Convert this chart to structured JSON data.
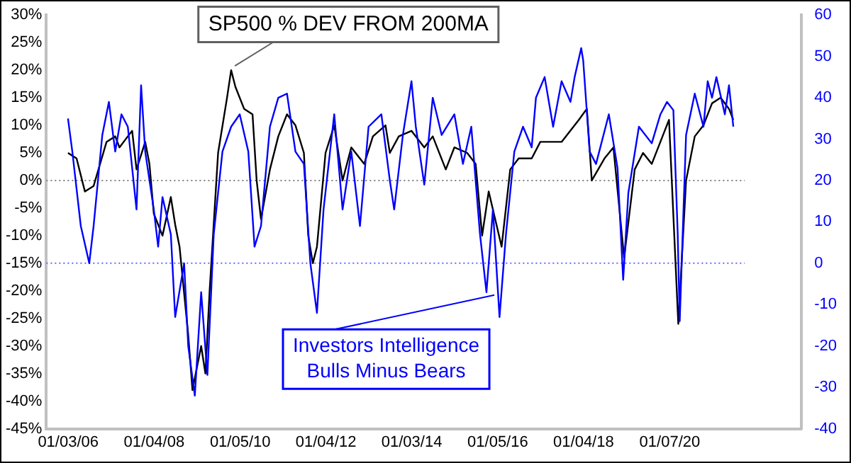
{
  "chart_data": {
    "type": "line",
    "annotations": [
      {
        "text": "SP500 % DEV FROM 200MA",
        "x": "2009-10-15",
        "y": 20
      },
      {
        "text": "Investors Intelligence\nBulls Minus Bears",
        "x": "2015-11-01",
        "y": -20
      }
    ],
    "xlim": [
      "2005-07-01",
      "2023-02-01"
    ],
    "xticks": [
      {
        "value": "2006-01-03",
        "label": "01/03/06"
      },
      {
        "value": "2008-01-04",
        "label": "01/04/08"
      },
      {
        "value": "2010-01-05",
        "label": "01/05/10"
      },
      {
        "value": "2012-01-04",
        "label": "01/04/12"
      },
      {
        "value": "2014-01-03",
        "label": "01/03/14"
      },
      {
        "value": "2016-01-05",
        "label": "01/05/16"
      },
      {
        "value": "2018-01-04",
        "label": "01/04/18"
      },
      {
        "value": "2020-01-07",
        "label": "01/07/20"
      }
    ],
    "ylim": [
      -45,
      30
    ],
    "yticks": [
      {
        "value": -45,
        "label": "-45%"
      },
      {
        "value": -40,
        "label": "-40%"
      },
      {
        "value": -35,
        "label": "-35%"
      },
      {
        "value": -30,
        "label": "-30%"
      },
      {
        "value": -25,
        "label": "-25%"
      },
      {
        "value": -20,
        "label": "-20%"
      },
      {
        "value": -15,
        "label": "-15%"
      },
      {
        "value": -10,
        "label": "-10%"
      },
      {
        "value": -5,
        "label": "-5%"
      },
      {
        "value": 0,
        "label": "0%"
      },
      {
        "value": 5,
        "label": "5%"
      },
      {
        "value": 10,
        "label": "10%"
      },
      {
        "value": 15,
        "label": "15%"
      },
      {
        "value": 20,
        "label": "20%"
      },
      {
        "value": 25,
        "label": "25%"
      },
      {
        "value": 30,
        "label": "30%"
      }
    ],
    "y2lim": [
      -40,
      60
    ],
    "y2ticks": [
      -40,
      -30,
      -20,
      -10,
      0,
      10,
      20,
      30,
      40,
      50,
      60
    ],
    "ref_lines": [
      {
        "axis": "y",
        "value": 0,
        "color": "#808080",
        "line_style": "dotted"
      },
      {
        "axis": "y2",
        "value": 0,
        "color": "#6666ff",
        "line_style": "dotted"
      }
    ],
    "grid": false,
    "legend": false,
    "marker": "none",
    "line_style": "solid",
    "series": [
      {
        "color": "#0000ff",
        "axis": "y2",
        "x": [
          "2006-01-01",
          "2006-02-07",
          "2006-04-20",
          "2006-07-01",
          "2006-08-07",
          "2006-10-20",
          "2006-12-15",
          "2007-02-07",
          "2007-04-01",
          "2007-05-25",
          "2007-07-01",
          "2007-08-07",
          "2007-09-15",
          "2007-10-20",
          "2008-01-01",
          "2008-02-07",
          "2008-03-15",
          "2008-05-25",
          "2008-07-01",
          "2008-09-15",
          "2008-10-20",
          "2008-12-15",
          "2009-02-07",
          "2009-04-01",
          "2009-05-25",
          "2009-08-07",
          "2009-10-20",
          "2010-01-01",
          "2010-03-15",
          "2010-05-07",
          "2010-07-01",
          "2010-09-15",
          "2010-11-25",
          "2011-02-07",
          "2011-04-20",
          "2011-07-01",
          "2011-08-25",
          "2011-10-20",
          "2011-12-15",
          "2012-03-15",
          "2012-05-25",
          "2012-08-07",
          "2012-10-20",
          "2013-01-01",
          "2013-04-20",
          "2013-07-01",
          "2013-08-07",
          "2013-10-20",
          "2014-01-01",
          "2014-02-07",
          "2014-04-20",
          "2014-07-01",
          "2014-09-15",
          "2015-01-01",
          "2015-03-15",
          "2015-05-25",
          "2015-08-07",
          "2015-10-01",
          "2015-11-25",
          "2016-01-20",
          "2016-03-15",
          "2016-05-25",
          "2016-08-07",
          "2016-10-20",
          "2016-11-25",
          "2017-02-07",
          "2017-04-20",
          "2017-07-01",
          "2017-09-15",
          "2017-10-20",
          "2017-12-15",
          "2018-01-01",
          "2018-02-25",
          "2018-04-20",
          "2018-08-07",
          "2018-10-20",
          "2018-12-07",
          "2019-01-20",
          "2019-04-20",
          "2019-08-07",
          "2019-10-20",
          "2019-12-15",
          "2020-02-07",
          "2020-03-15",
          "2020-04-01",
          "2020-05-25",
          "2020-08-07",
          "2020-10-20",
          "2020-11-25",
          "2021-01-01",
          "2021-02-07",
          "2021-04-20",
          "2021-05-25",
          "2021-07-01"
        ],
        "values": [
          35,
          27,
          9,
          0,
          9,
          31,
          39,
          27,
          36,
          33,
          23,
          13,
          43,
          27,
          13,
          4,
          16,
          7,
          -13,
          0,
          -20,
          -32,
          -7,
          -27,
          7,
          27,
          33,
          36,
          27,
          4,
          9,
          33,
          40,
          41,
          27,
          24,
          0,
          -12,
          13,
          36,
          13,
          27,
          9,
          33,
          36,
          20,
          13,
          31,
          44,
          33,
          19,
          40,
          31,
          36,
          24,
          33,
          7,
          -7,
          13,
          -13,
          7,
          27,
          33,
          28,
          40,
          45,
          33,
          44,
          39,
          45,
          52,
          49,
          27,
          24,
          36,
          23,
          -4,
          17,
          33,
          29,
          36,
          39,
          37,
          7,
          -14,
          31,
          41,
          33,
          44,
          40,
          45,
          36,
          43,
          33
        ]
      },
      {
        "color": "#000000",
        "x": [
          "2006-01-01",
          "2006-03-15",
          "2006-05-25",
          "2006-08-07",
          "2006-11-25",
          "2007-02-07",
          "2007-03-15",
          "2007-05-25",
          "2007-07-01",
          "2007-08-07",
          "2007-10-20",
          "2007-11-25",
          "2008-01-01",
          "2008-03-15",
          "2008-05-25",
          "2008-07-01",
          "2008-08-07",
          "2008-10-20",
          "2008-11-25",
          "2009-02-07",
          "2009-03-15",
          "2009-04-20",
          "2009-07-01",
          "2009-09-15",
          "2009-10-20",
          "2009-11-25",
          "2010-02-07",
          "2010-04-20",
          "2010-05-25",
          "2010-07-01",
          "2010-09-15",
          "2010-11-25",
          "2011-02-07",
          "2011-04-20",
          "2011-07-01",
          "2011-08-07",
          "2011-09-15",
          "2011-10-20",
          "2012-01-01",
          "2012-03-15",
          "2012-05-25",
          "2012-08-07",
          "2012-11-25",
          "2013-02-07",
          "2013-05-25",
          "2013-07-01",
          "2013-09-15",
          "2014-01-01",
          "2014-04-20",
          "2014-07-01",
          "2014-10-20",
          "2015-01-01",
          "2015-04-20",
          "2015-07-01",
          "2015-08-25",
          "2015-10-20",
          "2016-02-07",
          "2016-04-20",
          "2016-07-01",
          "2016-10-20",
          "2017-01-01",
          "2017-07-01",
          "2017-11-25",
          "2018-02-01",
          "2018-03-15",
          "2018-07-01",
          "2018-09-15",
          "2018-12-15",
          "2019-03-15",
          "2019-05-25",
          "2019-08-07",
          "2019-11-25",
          "2020-01-01",
          "2020-03-20",
          "2020-05-25",
          "2020-08-07",
          "2020-10-20",
          "2021-01-01",
          "2021-03-15",
          "2021-05-25",
          "2021-07-01"
        ],
        "values": [
          5,
          4,
          -2,
          -1,
          7,
          8,
          6,
          8,
          9,
          2,
          7,
          3,
          -6,
          -10,
          -3,
          -8,
          -12,
          -28,
          -38,
          -30,
          -35,
          -20,
          5,
          15,
          20,
          17,
          13,
          12,
          0,
          -7,
          2,
          8,
          12,
          10,
          5,
          -10,
          -15,
          -12,
          5,
          10,
          0,
          6,
          3,
          8,
          10,
          5,
          8,
          9,
          6,
          8,
          2,
          6,
          5,
          3,
          -10,
          -2,
          -12,
          2,
          4,
          4,
          7,
          7,
          11,
          13,
          0,
          4,
          6,
          -14,
          2,
          5,
          3,
          9,
          11,
          -26,
          0,
          8,
          10,
          14,
          15,
          13,
          11
        ]
      }
    ]
  }
}
